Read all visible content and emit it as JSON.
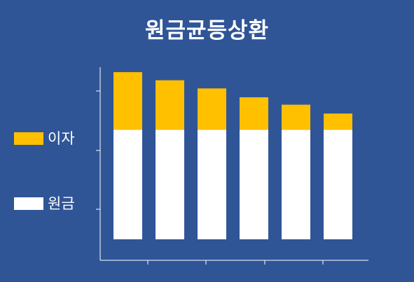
{
  "title": "원금균등상환",
  "colors": {
    "background": "#2f5597",
    "principal": "#ffffff",
    "interest": "#ffc000",
    "axis": "#ffffff"
  },
  "chart_data": {
    "type": "bar",
    "stacked": true,
    "categories": [
      "",
      "",
      "",
      "",
      "",
      ""
    ],
    "series": [
      {
        "name": "원금",
        "color": "#ffffff",
        "values": [
          1.48,
          1.48,
          1.48,
          1.48,
          1.48,
          1.48
        ]
      },
      {
        "name": "이자",
        "color": "#ffc000",
        "values": [
          0.78,
          0.67,
          0.56,
          0.44,
          0.34,
          0.22
        ]
      }
    ],
    "ylim": [
      0,
      2.8
    ],
    "xlabel": "",
    "ylabel": "",
    "grid": false,
    "legend_position": "left"
  }
}
